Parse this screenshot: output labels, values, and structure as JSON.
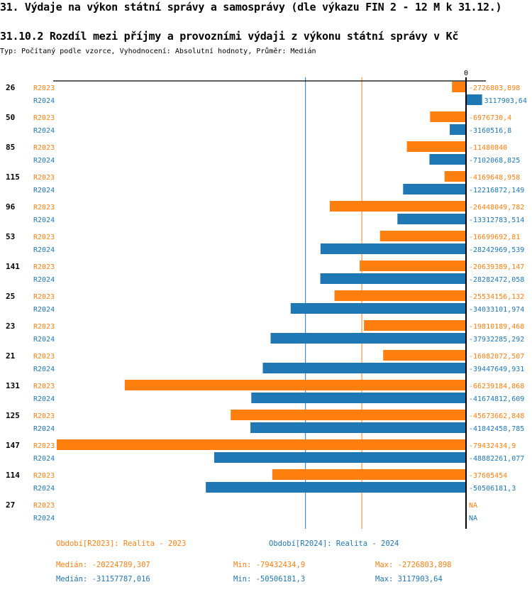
{
  "page": {
    "title": "31. Výdaje na výkon státní správy a samosprávy (dle výkazu FIN 2 - 12 M k 31.12.)",
    "subtitle": "31.10.2 Rozdíl mezi příjmy a provozními výdaji z výkonu státní správy v Kč",
    "info": "Typ: Počítaný podle vzorce, Vyhodnocení: Absolutní hodnoty, Průměr: Medián"
  },
  "colors": {
    "R2023": "#ff7f0e",
    "R2024": "#1f77b4",
    "axis": "#000000"
  },
  "chart_data": {
    "type": "bar",
    "orientation": "horizontal",
    "title": "31.10.2 Rozdíl mezi příjmy a provozními výdaji z výkonu státní správy v Kč",
    "x_zero_label": "0",
    "categories": [
      "26",
      "50",
      "85",
      "115",
      "96",
      "53",
      "141",
      "25",
      "23",
      "21",
      "131",
      "125",
      "147",
      "114",
      "27"
    ],
    "series": [
      {
        "name": "R2023",
        "values": [
          -2726803.898,
          -6976730.4,
          -11480840,
          -4169648.958,
          -26448049.782,
          -16699692.81,
          -20639389.147,
          -25534156.132,
          -19810189.468,
          -16082072.507,
          -66239184.868,
          -45673662.848,
          -79432434.9,
          -37605454,
          null
        ],
        "labels": [
          "-2726803,898",
          "-6976730,4",
          "-11480840",
          "-4169648,958",
          "-26448049,782",
          "-16699692,81",
          "-20639389,147",
          "-25534156,132",
          "-19810189,468",
          "-16082072,507",
          "-66239184,868",
          "-45673662,848",
          "-79432434,9",
          "-37605454",
          "NA"
        ]
      },
      {
        "name": "R2024",
        "values": [
          3117903.64,
          -3160516.8,
          -7102068.825,
          -12216872.149,
          -13312783.514,
          -28242969.539,
          -28282472.058,
          -34033101.974,
          -37932285.292,
          -39447649.931,
          -41674812.609,
          -41842458.785,
          -48882261.077,
          -50506181.3,
          null
        ],
        "labels": [
          "3117903,64",
          "-3160516,8",
          "-7102068,825",
          "-12216872,149",
          "-13312783,514",
          "-28242969,539",
          "-28282472,058",
          "-34033101,974",
          "-37932285,292",
          "-39447649,931",
          "-41674812,609",
          "-41842458,785",
          "-48882261,077",
          "-50506181,3",
          "NA"
        ]
      }
    ],
    "medians": {
      "R2023": -20224789.307,
      "R2024": -31157787.016
    },
    "xlim": [
      -79432434.9,
      3117903.64
    ]
  },
  "legend": {
    "R2023": "Období[R2023]: Realita - 2023",
    "R2024": "Období[R2024]: Realita - 2024"
  },
  "stats": {
    "R2023": {
      "median": "Medián: -20224789,307",
      "min": "Min: -79432434,9",
      "max": "Max: -2726803,898"
    },
    "R2024": {
      "median": "Medián: -31157787,016",
      "min": "Min: -50506181,3",
      "max": "Max: 3117903,64"
    }
  }
}
